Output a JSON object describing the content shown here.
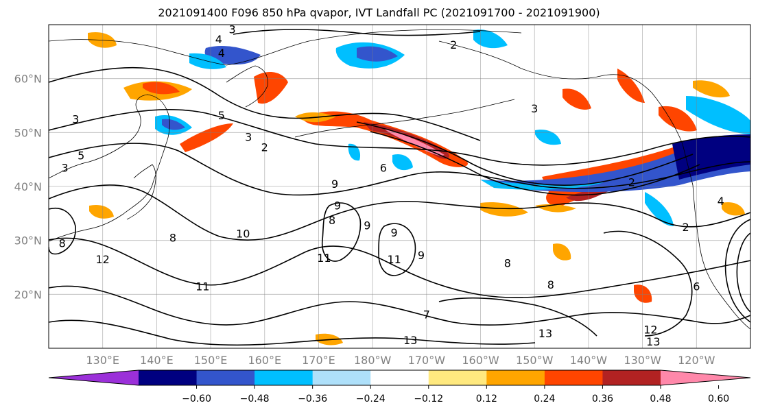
{
  "title": "2021091400 F096 850 hPa qvapor, IVT Landfall PC (2021091700 - 2021091900)",
  "map": {
    "lat_labels": [
      "60°N",
      "50°N",
      "40°N",
      "30°N",
      "20°N"
    ],
    "lat_values": [
      60,
      50,
      40,
      30,
      20
    ],
    "lon_labels": [
      "130°E",
      "140°E",
      "150°E",
      "160°E",
      "170°E",
      "180°W",
      "170°W",
      "160°W",
      "150°W",
      "140°W",
      "130°W",
      "120°W"
    ],
    "lon_values": [
      130,
      140,
      150,
      160,
      170,
      180,
      190,
      200,
      210,
      220,
      230,
      240
    ],
    "extent": {
      "lon": [
        120,
        250
      ],
      "lat": [
        10,
        70
      ]
    },
    "gridlines": true,
    "contour_labels": [
      {
        "text": "3",
        "lon": 154,
        "lat": 69.2
      },
      {
        "text": "4",
        "lon": 151.5,
        "lat": 67.3
      },
      {
        "text": "4",
        "lon": 152,
        "lat": 64.8
      },
      {
        "text": "3",
        "lon": 125,
        "lat": 52.5
      },
      {
        "text": "5",
        "lon": 126,
        "lat": 45.8
      },
      {
        "text": "5",
        "lon": 152,
        "lat": 53.2
      },
      {
        "text": "3",
        "lon": 157,
        "lat": 49.2
      },
      {
        "text": "2",
        "lon": 160,
        "lat": 47.3
      },
      {
        "text": "3",
        "lon": 210,
        "lat": 54.5
      },
      {
        "text": "2",
        "lon": 195,
        "lat": 66.3
      },
      {
        "text": "3",
        "lon": 123,
        "lat": 43.5
      },
      {
        "text": "6",
        "lon": 182,
        "lat": 43.5
      },
      {
        "text": "10",
        "lon": 156,
        "lat": 31.3
      },
      {
        "text": "9",
        "lon": 173,
        "lat": 40.5
      },
      {
        "text": "9",
        "lon": 173.5,
        "lat": 36.5
      },
      {
        "text": "9",
        "lon": 179,
        "lat": 32.8
      },
      {
        "text": "8",
        "lon": 172.5,
        "lat": 33.8
      },
      {
        "text": "9",
        "lon": 184,
        "lat": 31.5
      },
      {
        "text": "11",
        "lon": 171,
        "lat": 26.8
      },
      {
        "text": "11",
        "lon": 184,
        "lat": 26.5
      },
      {
        "text": "11",
        "lon": 148.5,
        "lat": 21.5
      },
      {
        "text": "9",
        "lon": 189,
        "lat": 27.3
      },
      {
        "text": "7",
        "lon": 190,
        "lat": 16.3
      },
      {
        "text": "8",
        "lon": 205,
        "lat": 25.8
      },
      {
        "text": "8",
        "lon": 213,
        "lat": 21.8
      },
      {
        "text": "12",
        "lon": 130,
        "lat": 26.5
      },
      {
        "text": "13",
        "lon": 187,
        "lat": 11.5
      },
      {
        "text": "13",
        "lon": 212,
        "lat": 12.8
      },
      {
        "text": "12",
        "lon": 231.5,
        "lat": 13.5
      },
      {
        "text": "13",
        "lon": 232,
        "lat": 11.3
      },
      {
        "text": "8",
        "lon": 122.5,
        "lat": 29.5
      },
      {
        "text": "8",
        "lon": 143,
        "lat": 30.5
      },
      {
        "text": "6",
        "lon": 240,
        "lat": 21.5
      },
      {
        "text": "2",
        "lon": 238,
        "lat": 32.5
      },
      {
        "text": "2",
        "lon": 228,
        "lat": 40.8
      },
      {
        "text": "4",
        "lon": 244.5,
        "lat": 37.3
      }
    ]
  },
  "colorbar": {
    "ticks": [
      "−0.60",
      "−0.48",
      "−0.36",
      "−0.24",
      "−0.12",
      "0.12",
      "0.24",
      "0.36",
      "0.48",
      "0.60"
    ],
    "colors": [
      "#9b30d9",
      "#000080",
      "#3355cc",
      "#00bfff",
      "#aee0fa",
      "#ffffff",
      "#ffe97f",
      "#ffa500",
      "#ff4500",
      "#b22222",
      "#ff88aa"
    ],
    "extend": "both"
  }
}
